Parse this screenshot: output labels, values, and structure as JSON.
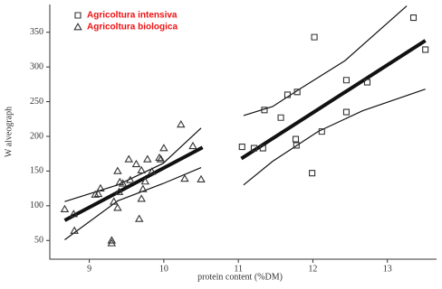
{
  "chart_data": {
    "type": "scatter",
    "x_label": "protein content (%DM)",
    "y_label": "W alveograph",
    "xlim": [
      8.47,
      13.66
    ],
    "ylim": [
      23,
      390
    ],
    "xticks": [
      9,
      10,
      11,
      12,
      13
    ],
    "yticks": [
      50,
      100,
      150,
      200,
      250,
      300,
      350
    ],
    "legend": "upper left",
    "series": [
      {
        "name": "Agricoltura intensiva",
        "marker": "square",
        "color": "#333333",
        "x": [
          11.05,
          11.21,
          11.33,
          11.35,
          11.57,
          11.66,
          11.79,
          11.77,
          11.78,
          12.02,
          11.99,
          12.12,
          12.45,
          12.45,
          12.73,
          13.35,
          13.51
        ],
        "values": [
          185,
          183,
          183,
          238,
          227,
          260,
          264,
          196,
          187,
          343,
          147,
          207,
          281,
          235,
          278,
          371,
          325
        ]
      },
      {
        "name": "Agricoltura biologica",
        "marker": "triangle",
        "color": "#333333",
        "x": [
          8.67,
          8.79,
          8.8,
          9.08,
          9.12,
          9.15,
          9.3,
          9.3,
          9.33,
          9.38,
          9.38,
          9.4,
          9.41,
          9.45,
          9.53,
          9.55,
          9.63,
          9.67,
          9.7,
          9.7,
          9.72,
          9.75,
          9.78,
          9.84,
          9.94,
          9.96,
          10.0,
          10.23,
          10.28,
          10.39,
          10.5
        ],
        "values": [
          95,
          88,
          64,
          116,
          117,
          125,
          50,
          46,
          106,
          150,
          97,
          120,
          134,
          132,
          167,
          137,
          160,
          81,
          110,
          151,
          124,
          135,
          167,
          149,
          169,
          167,
          183,
          217,
          139,
          186,
          138
        ]
      }
    ],
    "lines": [
      {
        "color": "#111111",
        "width": 4,
        "x": [
          8.67,
          10.52
        ],
        "y": [
          79,
          184
        ]
      },
      {
        "color": "#111111",
        "width": 1.2,
        "x": [
          8.67,
          9.38,
          9.99,
          10.5
        ],
        "y": [
          106,
          130,
          161,
          212
        ]
      },
      {
        "color": "#111111",
        "width": 1.2,
        "x": [
          8.67,
          9.38,
          9.99,
          10.5
        ],
        "y": [
          51,
          107,
          132,
          155
        ]
      },
      {
        "color": "#111111",
        "width": 4,
        "x": [
          11.04,
          13.51
        ],
        "y": [
          168,
          338
        ]
      },
      {
        "color": "#111111",
        "width": 1.2,
        "x": [
          11.07,
          11.46,
          11.82,
          12.43,
          13.26
        ],
        "y": [
          230,
          243,
          268,
          309,
          388
        ]
      },
      {
        "color": "#111111",
        "width": 1.2,
        "x": [
          11.07,
          11.46,
          12.07,
          12.67,
          13.51
        ],
        "y": [
          130,
          164,
          207,
          237,
          268
        ]
      }
    ],
    "legend_color": "#ee1111"
  }
}
